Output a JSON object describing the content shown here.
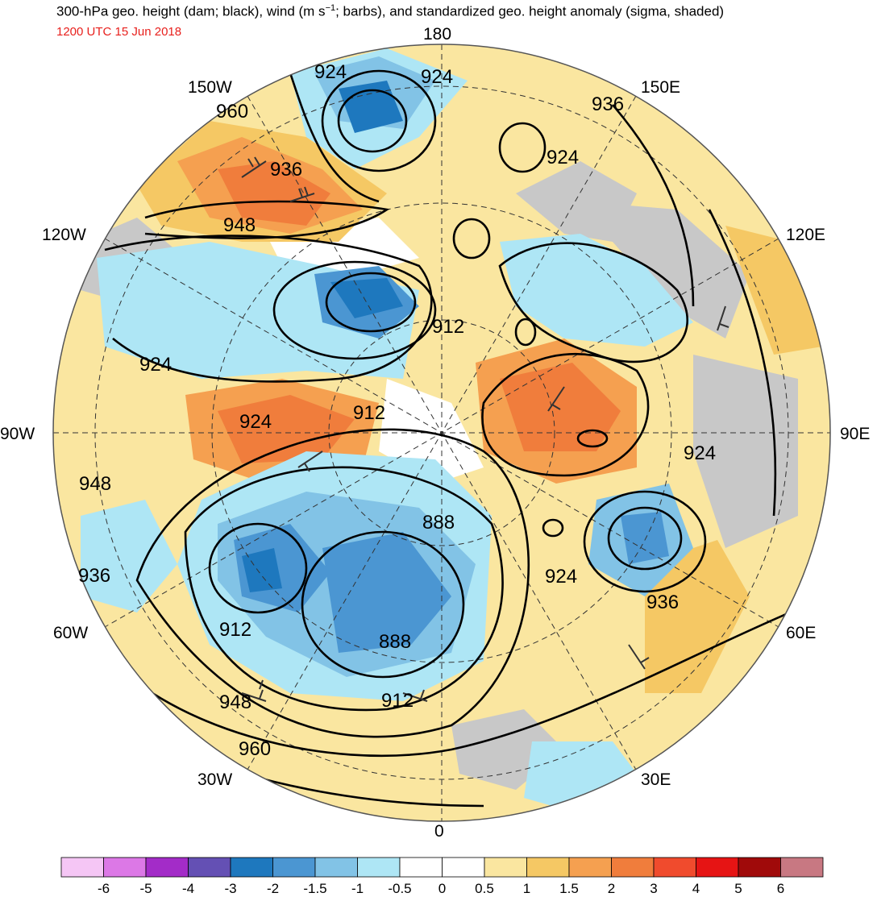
{
  "header": {
    "title_main": "300-hPa geo. height (dam; black), wind (m s",
    "title_sup": "−1",
    "title_rest": "; barbs), and standardized geo. height anomaly (sigma, shaded)",
    "datetime": "1200 UTC 15 Jun 2018"
  },
  "longitude_labels": {
    "top": "180",
    "bottom": "0",
    "left": "90W",
    "right": "90E",
    "upper_left": "150W",
    "upper_right": "150E",
    "mid_upper_left": "120W",
    "mid_upper_right": "120E",
    "mid_lower_left": "60W",
    "mid_lower_right": "60E",
    "lower_left": "30W",
    "lower_right": "30E"
  },
  "contour_labels": [
    {
      "id": "c1",
      "text": "924"
    },
    {
      "id": "c2",
      "text": "924"
    },
    {
      "id": "c3",
      "text": "960"
    },
    {
      "id": "c4",
      "text": "936"
    },
    {
      "id": "c5",
      "text": "948"
    },
    {
      "id": "c6",
      "text": "936"
    },
    {
      "id": "c7",
      "text": "924"
    },
    {
      "id": "c8",
      "text": "912"
    },
    {
      "id": "c9",
      "text": "924"
    },
    {
      "id": "c10",
      "text": "924"
    },
    {
      "id": "c11",
      "text": "912"
    },
    {
      "id": "c12",
      "text": "924"
    },
    {
      "id": "c13",
      "text": "948"
    },
    {
      "id": "c14",
      "text": "888"
    },
    {
      "id": "c15",
      "text": "936"
    },
    {
      "id": "c16",
      "text": "924"
    },
    {
      "id": "c17",
      "text": "936"
    },
    {
      "id": "c18",
      "text": "912"
    },
    {
      "id": "c19",
      "text": "888"
    },
    {
      "id": "c20",
      "text": "912"
    },
    {
      "id": "c21",
      "text": "948"
    },
    {
      "id": "c22",
      "text": "960"
    }
  ],
  "colorbar": {
    "ticks": [
      "-6",
      "-5",
      "-4",
      "-3",
      "-2",
      "-1.5",
      "-1",
      "-0.5",
      "0",
      "0.5",
      "1",
      "1.5",
      "2",
      "3",
      "4",
      "5",
      "6"
    ],
    "colors": [
      "#f5c6f5",
      "#dc78e6",
      "#a32cc8",
      "#6450b4",
      "#1e78be",
      "#4b96d2",
      "#82c3e6",
      "#aee6f5",
      "#ffffff",
      "#ffffff",
      "#fae6a0",
      "#f5c864",
      "#f5a050",
      "#f07d3c",
      "#f04b2d",
      "#e61414",
      "#a00a0a",
      "#c87882"
    ]
  },
  "field_colors": {
    "neg_strong": "#1e78be",
    "neg_medium": "#4b96d2",
    "neg_light": "#82c3e6",
    "neg_faint": "#aee6f5",
    "pos_faint": "#fae6a0",
    "pos_light": "#f5c864",
    "pos_medium": "#f5a050",
    "pos_strong": "#f07d3c",
    "land_gray": "#c8c8c8"
  }
}
